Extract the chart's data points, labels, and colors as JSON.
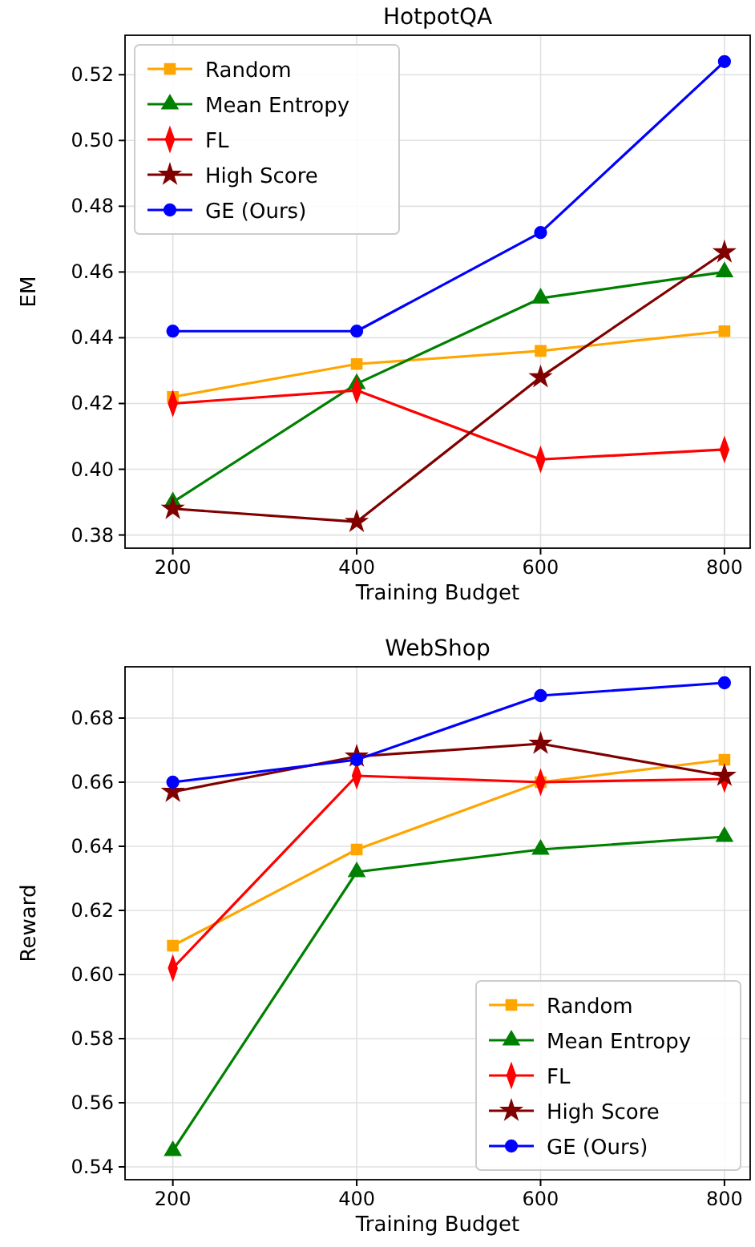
{
  "chart_data": [
    {
      "type": "line",
      "title": "HotpotQA",
      "xlabel": "Training Budget",
      "ylabel": "EM",
      "x": [
        200,
        400,
        600,
        800
      ],
      "xlim": [
        148,
        828
      ],
      "xticks": [
        200,
        400,
        600,
        800
      ],
      "ylim": [
        0.376,
        0.532
      ],
      "yticks": [
        {
          "value": 0.38,
          "label": "0.38"
        },
        {
          "value": 0.4,
          "label": "0.40"
        },
        {
          "value": 0.42,
          "label": "0.42"
        },
        {
          "value": 0.44,
          "label": "0.44"
        },
        {
          "value": 0.46,
          "label": "0.46"
        },
        {
          "value": 0.48,
          "label": "0.48"
        },
        {
          "value": 0.5,
          "label": "0.50"
        },
        {
          "value": 0.52,
          "label": "0.52"
        }
      ],
      "grid": true,
      "legend": "top left",
      "series": [
        {
          "name": "Random",
          "color": "#ffa500",
          "marker": "square",
          "values": [
            0.422,
            0.432,
            0.436,
            0.442
          ]
        },
        {
          "name": "Mean Entropy",
          "color": "#008000",
          "marker": "triangle",
          "values": [
            0.39,
            0.426,
            0.452,
            0.46
          ]
        },
        {
          "name": "FL",
          "color": "#ff0000",
          "marker": "diamond",
          "values": [
            0.42,
            0.424,
            0.403,
            0.406
          ]
        },
        {
          "name": "High Score",
          "color": "#800000",
          "marker": "star",
          "values": [
            0.388,
            0.384,
            0.428,
            0.466
          ]
        },
        {
          "name": "GE (Ours)",
          "color": "#0000ff",
          "marker": "circle",
          "values": [
            0.442,
            0.442,
            0.472,
            0.524
          ]
        }
      ]
    },
    {
      "type": "line",
      "title": "WebShop",
      "xlabel": "Training Budget",
      "ylabel": "Reward",
      "x": [
        200,
        400,
        600,
        800
      ],
      "xlim": [
        148,
        828
      ],
      "xticks": [
        200,
        400,
        600,
        800
      ],
      "ylim": [
        0.536,
        0.696
      ],
      "yticks": [
        {
          "value": 0.54,
          "label": "0.54"
        },
        {
          "value": 0.56,
          "label": "0.56"
        },
        {
          "value": 0.58,
          "label": "0.58"
        },
        {
          "value": 0.6,
          "label": "0.60"
        },
        {
          "value": 0.62,
          "label": "0.62"
        },
        {
          "value": 0.64,
          "label": "0.64"
        },
        {
          "value": 0.66,
          "label": "0.66"
        },
        {
          "value": 0.68,
          "label": "0.68"
        }
      ],
      "grid": true,
      "legend": "bottom right",
      "series": [
        {
          "name": "Random",
          "color": "#ffa500",
          "marker": "square",
          "values": [
            0.609,
            0.639,
            0.66,
            0.667
          ]
        },
        {
          "name": "Mean Entropy",
          "color": "#008000",
          "marker": "triangle",
          "values": [
            0.545,
            0.632,
            0.639,
            0.643
          ]
        },
        {
          "name": "FL",
          "color": "#ff0000",
          "marker": "diamond",
          "values": [
            0.602,
            0.662,
            0.66,
            0.661
          ]
        },
        {
          "name": "High Score",
          "color": "#800000",
          "marker": "star",
          "values": [
            0.657,
            0.668,
            0.672,
            0.662
          ]
        },
        {
          "name": "GE (Ours)",
          "color": "#0000ff",
          "marker": "circle",
          "values": [
            0.66,
            0.667,
            0.687,
            0.691
          ]
        }
      ]
    }
  ]
}
